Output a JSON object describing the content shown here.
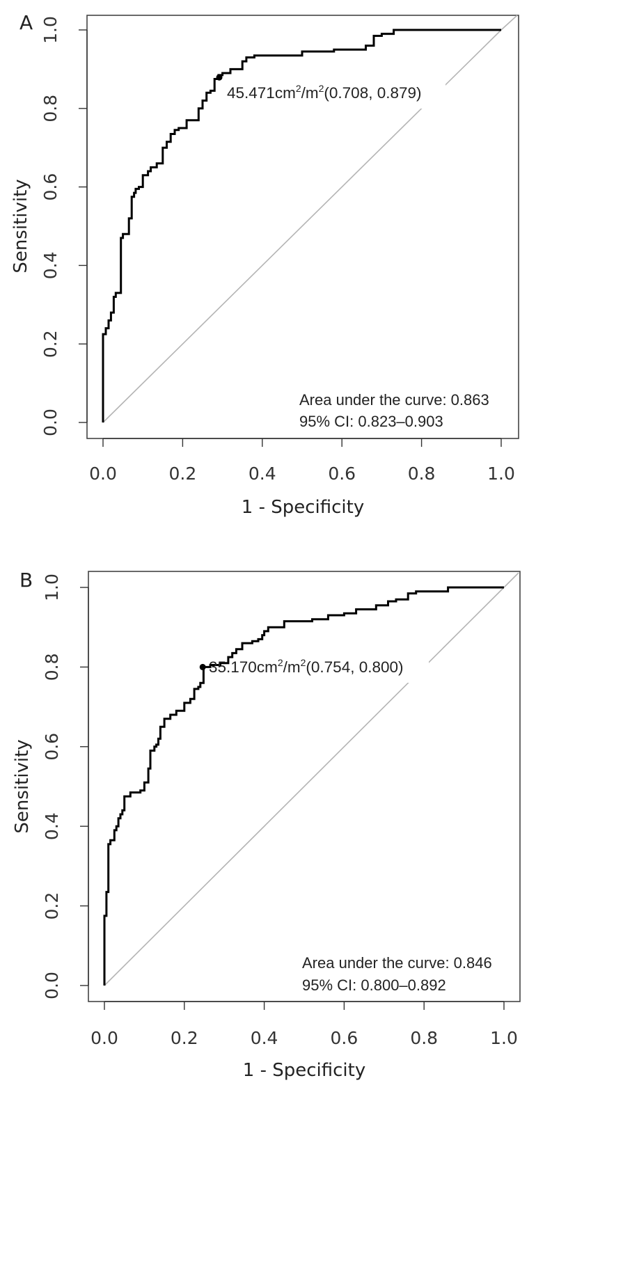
{
  "chart_data": [
    {
      "type": "line",
      "panel_label": "A",
      "xlabel": "1 - Specificity",
      "ylabel": "Sensitivity",
      "xlim": [
        0,
        1
      ],
      "ylim": [
        0,
        1
      ],
      "ticks": [
        "0.0",
        "0.2",
        "0.4",
        "0.6",
        "0.8",
        "1.0"
      ],
      "x": [
        0,
        0,
        0.007,
        0.007,
        0.014,
        0.014,
        0.02,
        0.02,
        0.027,
        0.027,
        0.032,
        0.032,
        0.045,
        0.045,
        0.05,
        0.05,
        0.065,
        0.065,
        0.072,
        0.072,
        0.078,
        0.078,
        0.082,
        0.082,
        0.09,
        0.09,
        0.1,
        0.1,
        0.113,
        0.113,
        0.12,
        0.12,
        0.135,
        0.135,
        0.15,
        0.15,
        0.16,
        0.16,
        0.17,
        0.17,
        0.18,
        0.18,
        0.19,
        0.19,
        0.2,
        0.2,
        0.21,
        0.21,
        0.24,
        0.24,
        0.25,
        0.25,
        0.26,
        0.26,
        0.27,
        0.27,
        0.28,
        0.28,
        0.29,
        0.29,
        0.3,
        0.3,
        0.32,
        0.32,
        0.35,
        0.35,
        0.36,
        0.36,
        0.38,
        0.38,
        0.4,
        0.4,
        0.5,
        0.5,
        0.58,
        0.58,
        0.66,
        0.66,
        0.68,
        0.68,
        0.7,
        0.7,
        0.73,
        0.73,
        1.0
      ],
      "y": [
        0,
        0.225,
        0.225,
        0.24,
        0.24,
        0.26,
        0.26,
        0.28,
        0.28,
        0.32,
        0.32,
        0.33,
        0.33,
        0.47,
        0.47,
        0.48,
        0.48,
        0.52,
        0.52,
        0.575,
        0.575,
        0.585,
        0.585,
        0.595,
        0.595,
        0.6,
        0.6,
        0.63,
        0.63,
        0.64,
        0.64,
        0.65,
        0.65,
        0.66,
        0.66,
        0.7,
        0.7,
        0.715,
        0.715,
        0.735,
        0.735,
        0.745,
        0.745,
        0.75,
        0.75,
        0.75,
        0.75,
        0.77,
        0.77,
        0.8,
        0.8,
        0.82,
        0.82,
        0.84,
        0.84,
        0.845,
        0.845,
        0.875,
        0.875,
        0.885,
        0.885,
        0.89,
        0.89,
        0.9,
        0.9,
        0.92,
        0.92,
        0.93,
        0.93,
        0.935,
        0.935,
        0.935,
        0.935,
        0.945,
        0.945,
        0.95,
        0.95,
        0.96,
        0.96,
        0.985,
        0.985,
        0.99,
        0.99,
        1.0,
        1.0
      ],
      "optimal_point": {
        "x": 0.292,
        "y": 0.879
      },
      "annotation": {
        "value": "45.471cm",
        "sup1": "2",
        "mid": "/m",
        "sup2": "2",
        "coords": "(0.708, 0.879)"
      },
      "auc_text": "Area under the curve: 0.863",
      "ci_text": "95% CI: 0.823–0.903"
    },
    {
      "type": "line",
      "panel_label": "B",
      "xlabel": "1 - Specificity",
      "ylabel": "Sensitivity",
      "xlim": [
        0,
        1
      ],
      "ylim": [
        0,
        1
      ],
      "ticks": [
        "0.0",
        "0.2",
        "0.4",
        "0.6",
        "0.8",
        "1.0"
      ],
      "x": [
        0,
        0,
        0.005,
        0.005,
        0.01,
        0.01,
        0.015,
        0.015,
        0.025,
        0.025,
        0.03,
        0.03,
        0.035,
        0.035,
        0.04,
        0.04,
        0.045,
        0.045,
        0.05,
        0.05,
        0.055,
        0.055,
        0.065,
        0.065,
        0.09,
        0.09,
        0.1,
        0.1,
        0.11,
        0.11,
        0.115,
        0.115,
        0.125,
        0.125,
        0.13,
        0.13,
        0.135,
        0.135,
        0.14,
        0.14,
        0.15,
        0.15,
        0.165,
        0.165,
        0.18,
        0.18,
        0.19,
        0.19,
        0.2,
        0.2,
        0.215,
        0.215,
        0.225,
        0.225,
        0.235,
        0.235,
        0.24,
        0.24,
        0.248,
        0.248,
        0.265,
        0.265,
        0.29,
        0.29,
        0.31,
        0.31,
        0.32,
        0.32,
        0.33,
        0.33,
        0.345,
        0.345,
        0.37,
        0.37,
        0.385,
        0.385,
        0.395,
        0.395,
        0.4,
        0.4,
        0.41,
        0.41,
        0.43,
        0.43,
        0.45,
        0.45,
        0.52,
        0.52,
        0.56,
        0.56,
        0.6,
        0.6,
        0.63,
        0.63,
        0.68,
        0.68,
        0.71,
        0.71,
        0.73,
        0.73,
        0.76,
        0.76,
        0.78,
        0.78,
        0.86,
        0.86,
        1.0
      ],
      "y": [
        0,
        0.175,
        0.175,
        0.235,
        0.235,
        0.355,
        0.355,
        0.365,
        0.365,
        0.39,
        0.39,
        0.4,
        0.4,
        0.42,
        0.42,
        0.43,
        0.43,
        0.44,
        0.44,
        0.475,
        0.475,
        0.475,
        0.475,
        0.485,
        0.485,
        0.49,
        0.49,
        0.51,
        0.51,
        0.545,
        0.545,
        0.59,
        0.59,
        0.6,
        0.6,
        0.605,
        0.605,
        0.62,
        0.62,
        0.65,
        0.65,
        0.67,
        0.67,
        0.68,
        0.68,
        0.69,
        0.69,
        0.69,
        0.69,
        0.71,
        0.71,
        0.72,
        0.72,
        0.745,
        0.745,
        0.75,
        0.75,
        0.76,
        0.76,
        0.8,
        0.8,
        0.805,
        0.805,
        0.81,
        0.81,
        0.825,
        0.825,
        0.835,
        0.835,
        0.845,
        0.845,
        0.86,
        0.86,
        0.865,
        0.865,
        0.87,
        0.87,
        0.88,
        0.88,
        0.89,
        0.89,
        0.9,
        0.9,
        0.9,
        0.9,
        0.915,
        0.915,
        0.92,
        0.92,
        0.93,
        0.93,
        0.935,
        0.935,
        0.945,
        0.945,
        0.955,
        0.955,
        0.965,
        0.965,
        0.97,
        0.97,
        0.985,
        0.985,
        0.99,
        0.99,
        1.0,
        1.0
      ],
      "optimal_point": {
        "x": 0.246,
        "y": 0.8
      },
      "annotation": {
        "value": "35.170cm",
        "sup1": "2",
        "mid": "/m",
        "sup2": "2",
        "coords": "(0.754, 0.800)"
      },
      "auc_text": "Area under the curve: 0.846",
      "ci_text": "95% CI: 0.800–0.892"
    }
  ]
}
